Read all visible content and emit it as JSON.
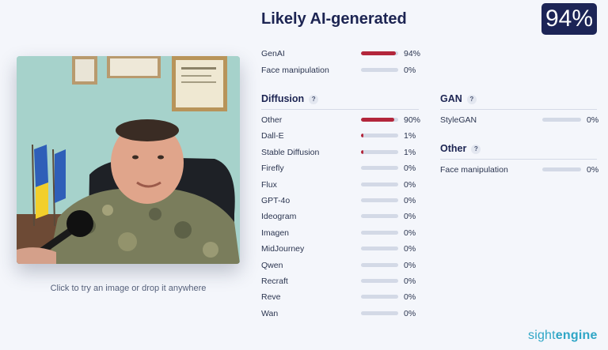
{
  "header": {
    "title": "Likely AI-generated",
    "score": "94%"
  },
  "summary": [
    {
      "label": "GenAI",
      "value": 0.94,
      "pct": "94%"
    },
    {
      "label": "Face manipulation",
      "value": 0.0,
      "pct": "0%"
    }
  ],
  "diffusion": {
    "heading": "Diffusion",
    "help": "?",
    "items": [
      {
        "label": "Other",
        "value": 0.9,
        "pct": "90%"
      },
      {
        "label": "Dall-E",
        "value": 0.01,
        "pct": "1%"
      },
      {
        "label": "Stable Diffusion",
        "value": 0.01,
        "pct": "1%"
      },
      {
        "label": "Firefly",
        "value": 0,
        "pct": "0%"
      },
      {
        "label": "Flux",
        "value": 0,
        "pct": "0%"
      },
      {
        "label": "GPT-4o",
        "value": 0,
        "pct": "0%"
      },
      {
        "label": "Ideogram",
        "value": 0,
        "pct": "0%"
      },
      {
        "label": "Imagen",
        "value": 0,
        "pct": "0%"
      },
      {
        "label": "MidJourney",
        "value": 0,
        "pct": "0%"
      },
      {
        "label": "Qwen",
        "value": 0,
        "pct": "0%"
      },
      {
        "label": "Recraft",
        "value": 0,
        "pct": "0%"
      },
      {
        "label": "Reve",
        "value": 0,
        "pct": "0%"
      },
      {
        "label": "Wan",
        "value": 0,
        "pct": "0%"
      }
    ]
  },
  "gan": {
    "heading": "GAN",
    "help": "?",
    "items": [
      {
        "label": "StyleGAN",
        "value": 0,
        "pct": "0%"
      }
    ]
  },
  "other": {
    "heading": "Other",
    "help": "?",
    "items": [
      {
        "label": "Face manipulation",
        "value": 0,
        "pct": "0%"
      }
    ]
  },
  "upload_hint": "Click to try an image or drop it anywhere",
  "brand": {
    "part1": "sight",
    "part2": "engine"
  },
  "colors": {
    "accent": "#b3263b",
    "track": "#d3d9e6",
    "navy": "#1c2456",
    "brand": "#2fa6c6"
  }
}
